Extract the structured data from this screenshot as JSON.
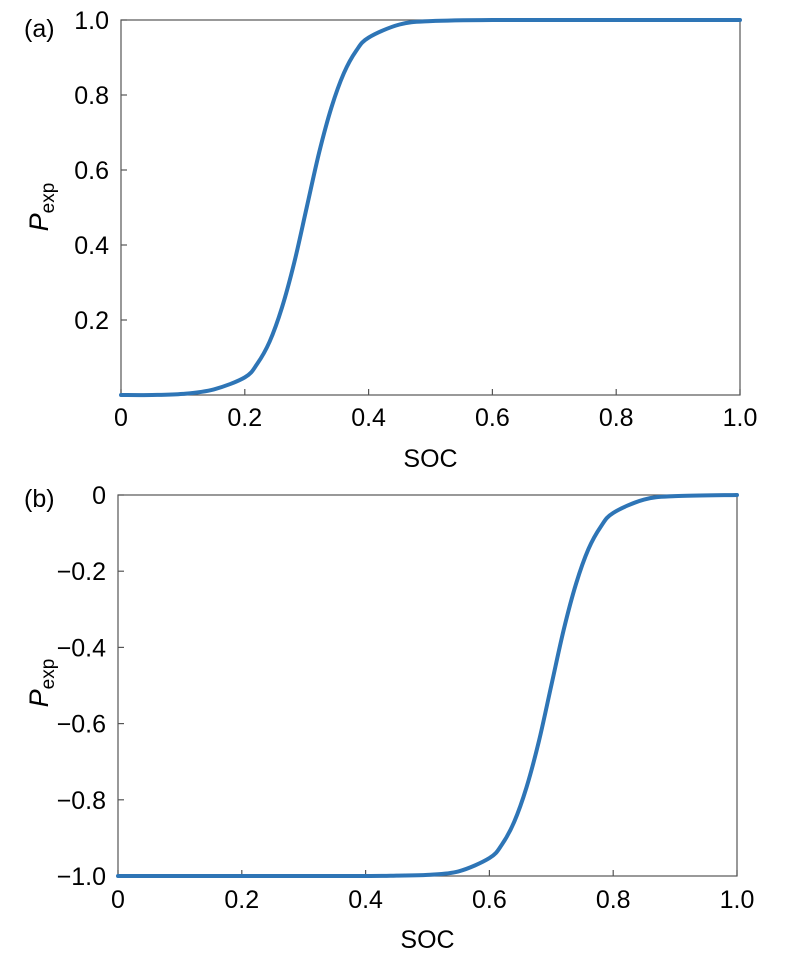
{
  "chart_data": [
    {
      "type": "line",
      "panel_label": "(a)",
      "xlabel": "SOC",
      "ylabel_main": "P",
      "ylabel_sub": "exp",
      "xlim": [
        0,
        1.0
      ],
      "ylim": [
        0,
        1.0
      ],
      "x_ticks": [
        0,
        0.2,
        0.4,
        0.6,
        0.8,
        1.0
      ],
      "x_tick_labels": [
        "0",
        "0.2",
        "0.4",
        "0.6",
        "0.8",
        "1.0"
      ],
      "y_ticks": [
        0.2,
        0.4,
        0.6,
        0.8,
        1.0
      ],
      "y_tick_labels": [
        "0.2",
        "0.4",
        "0.6",
        "0.8",
        "1.0"
      ],
      "grid": false,
      "series": [
        {
          "color": "#2e75b6",
          "x": [
            0,
            0.05,
            0.1,
            0.15,
            0.2,
            0.22,
            0.24,
            0.26,
            0.28,
            0.3,
            0.32,
            0.34,
            0.36,
            0.38,
            0.4,
            0.45,
            0.5,
            0.6,
            0.8,
            1.0
          ],
          "y": [
            0.0,
            0.0,
            0.003,
            0.015,
            0.047,
            0.083,
            0.142,
            0.233,
            0.354,
            0.5,
            0.646,
            0.767,
            0.858,
            0.918,
            0.953,
            0.988,
            0.997,
            1.0,
            1.0,
            1.0
          ]
        }
      ]
    },
    {
      "type": "line",
      "panel_label": "(b)",
      "xlabel": "SOC",
      "ylabel_main": "P",
      "ylabel_sub": "exp",
      "xlim": [
        0,
        1.0
      ],
      "ylim": [
        -1.0,
        0
      ],
      "x_ticks": [
        0,
        0.2,
        0.4,
        0.6,
        0.8,
        1.0
      ],
      "x_tick_labels": [
        "0",
        "0.2",
        "0.4",
        "0.6",
        "0.8",
        "1.0"
      ],
      "y_ticks": [
        -1.0,
        -0.8,
        -0.6,
        -0.4,
        -0.2,
        0
      ],
      "y_tick_labels": [
        "−1.0",
        "−0.8",
        "−0.6",
        "−0.4",
        "−0.2",
        "0"
      ],
      "grid": false,
      "series": [
        {
          "color": "#2e75b6",
          "x": [
            0,
            0.2,
            0.4,
            0.45,
            0.5,
            0.55,
            0.6,
            0.62,
            0.64,
            0.66,
            0.68,
            0.7,
            0.72,
            0.74,
            0.76,
            0.78,
            0.8,
            0.85,
            0.9,
            1.0
          ],
          "y": [
            -1.0,
            -1.0,
            -1.0,
            -0.999,
            -0.997,
            -0.988,
            -0.953,
            -0.918,
            -0.858,
            -0.767,
            -0.646,
            -0.5,
            -0.354,
            -0.233,
            -0.142,
            -0.083,
            -0.047,
            -0.012,
            -0.003,
            0.0
          ]
        }
      ]
    }
  ]
}
